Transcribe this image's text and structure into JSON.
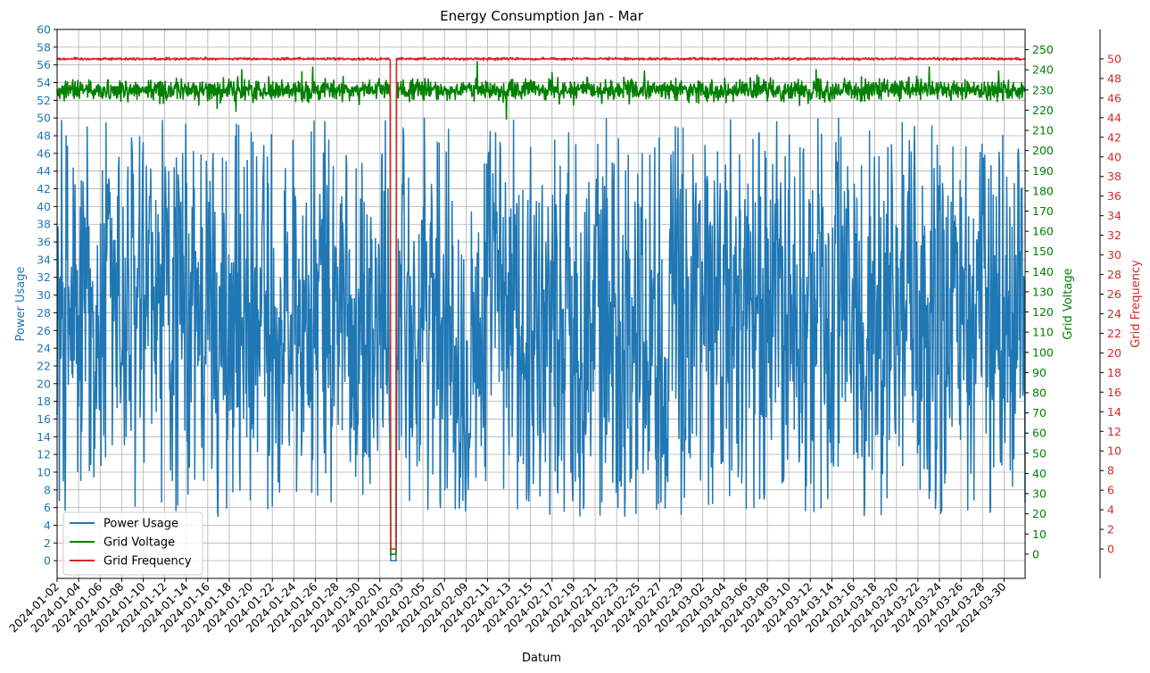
{
  "chart_data": {
    "type": "line",
    "title": "Energy Consumption Jan - Mar",
    "xlabel": "Datum",
    "x_range": [
      "2024-01-02",
      "2024-03-31"
    ],
    "x_tick_labels": [
      "2024-01-02",
      "2024-01-04",
      "2024-01-06",
      "2024-01-08",
      "2024-01-10",
      "2024-01-12",
      "2024-01-14",
      "2024-01-16",
      "2024-01-18",
      "2024-01-20",
      "2024-01-22",
      "2024-01-24",
      "2024-01-26",
      "2024-01-28",
      "2024-01-30",
      "2024-02-01",
      "2024-02-03",
      "2024-02-05",
      "2024-02-07",
      "2024-02-09",
      "2024-02-11",
      "2024-02-13",
      "2024-02-15",
      "2024-02-17",
      "2024-02-19",
      "2024-02-21",
      "2024-02-23",
      "2024-02-25",
      "2024-02-27",
      "2024-02-29",
      "2024-03-02",
      "2024-03-04",
      "2024-03-06",
      "2024-03-08",
      "2024-03-10",
      "2024-03-12",
      "2024-03-14",
      "2024-03-16",
      "2024-03-18",
      "2024-03-20",
      "2024-03-22",
      "2024-03-24",
      "2024-03-26",
      "2024-03-28",
      "2024-03-30"
    ],
    "outage": {
      "start": "2024-02-02",
      "end": "2024-02-02T12:00",
      "value": 0
    },
    "axes": [
      {
        "id": "left",
        "label": "Power Usage",
        "color": "#1f77b4",
        "range": [
          -2,
          60
        ],
        "tick_step": 2,
        "ticks": [
          "0",
          "2",
          "4",
          "6",
          "8",
          "10",
          "12",
          "14",
          "16",
          "18",
          "20",
          "22",
          "24",
          "26",
          "28",
          "30",
          "32",
          "34",
          "36",
          "38",
          "40",
          "42",
          "44",
          "46",
          "48",
          "50",
          "52",
          "54",
          "56",
          "58",
          "60"
        ]
      },
      {
        "id": "right1",
        "label": "Grid Voltage",
        "color": "#008000",
        "range": [
          -12,
          260
        ],
        "tick_step": 10,
        "ticks": [
          "0",
          "10",
          "20",
          "30",
          "40",
          "50",
          "60",
          "70",
          "80",
          "90",
          "100",
          "110",
          "120",
          "130",
          "140",
          "150",
          "160",
          "170",
          "180",
          "190",
          "200",
          "210",
          "220",
          "230",
          "240",
          "250"
        ]
      },
      {
        "id": "right2",
        "label": "Grid Frequency",
        "color": "#d62728",
        "range": [
          -3,
          53
        ],
        "tick_step": 2,
        "ticks": [
          "0",
          "2",
          "4",
          "6",
          "8",
          "10",
          "12",
          "14",
          "16",
          "18",
          "20",
          "22",
          "24",
          "26",
          "28",
          "30",
          "32",
          "34",
          "36",
          "38",
          "40",
          "42",
          "44",
          "46",
          "48",
          "50"
        ]
      }
    ],
    "series": [
      {
        "name": "Power Usage",
        "axis": "left",
        "color": "#1f77b4",
        "sampling": "hourly",
        "typical_range": [
          5,
          50
        ],
        "mean": 27
      },
      {
        "name": "Grid Voltage",
        "axis": "right1",
        "color": "#008000",
        "sampling": "hourly",
        "typical_range": [
          220,
          240
        ],
        "mean": 230
      },
      {
        "name": "Grid Frequency",
        "axis": "right2",
        "color": "#d62728",
        "sampling": "hourly",
        "typical_range": [
          49.8,
          50.2
        ],
        "mean": 50
      }
    ],
    "legend": {
      "placement": "lower-left",
      "entries": [
        "Power Usage",
        "Grid Voltage",
        "Grid Frequency"
      ]
    },
    "grid": true
  }
}
